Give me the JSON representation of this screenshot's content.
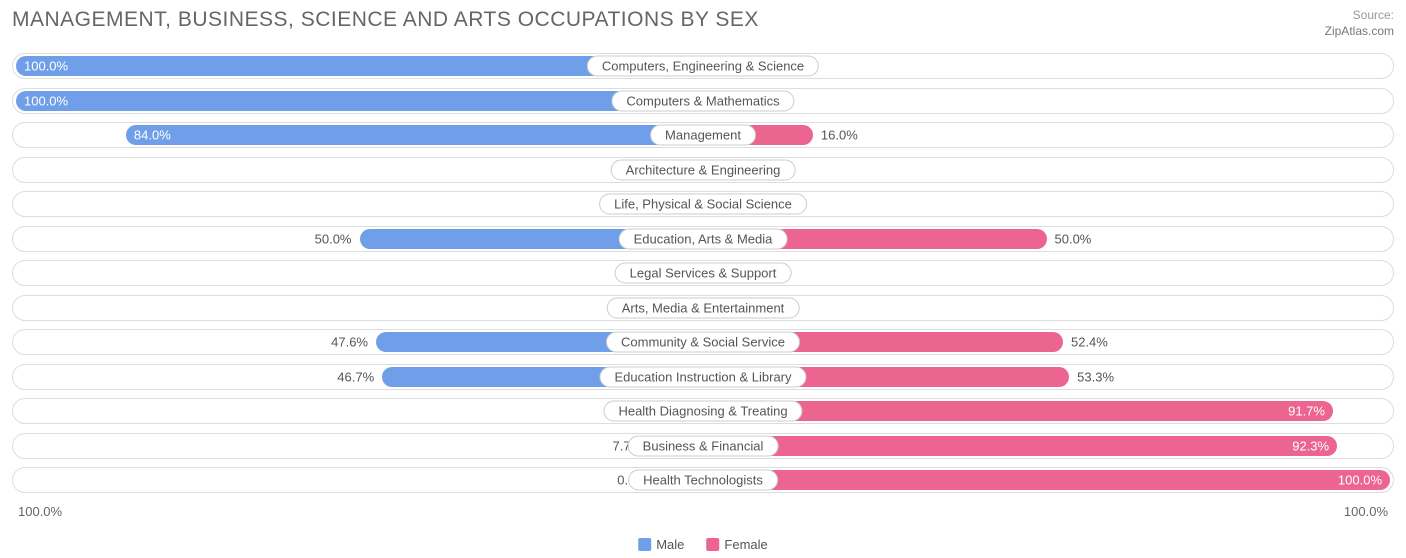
{
  "header": {
    "title": "MANAGEMENT, BUSINESS, SCIENCE AND ARTS OCCUPATIONS BY SEX",
    "source_label": "Source:",
    "source_site": "ZipAtlas.com"
  },
  "chart": {
    "type": "diverging-bar",
    "background_color": "#ffffff",
    "row_border_color": "#dddddd",
    "label_border_color": "#cccccc",
    "text_color": "#555555",
    "male": {
      "fill_color": "#6f9fe8",
      "weak_color": "#a7c2ee",
      "legend_label": "Male"
    },
    "female": {
      "fill_color": "#ec6490",
      "weak_color": "#f3a0bb",
      "legend_label": "Female"
    },
    "axis": {
      "left": "100.0%",
      "right": "100.0%"
    },
    "label_fontsize": 13,
    "title_fontsize": 21,
    "min_bar_pct": 7.0,
    "rows": [
      {
        "category": "Computers, Engineering & Science",
        "male": 100.0,
        "female": 0.0
      },
      {
        "category": "Computers & Mathematics",
        "male": 100.0,
        "female": 0.0
      },
      {
        "category": "Management",
        "male": 84.0,
        "female": 16.0
      },
      {
        "category": "Architecture & Engineering",
        "male": 0.0,
        "female": 0.0
      },
      {
        "category": "Life, Physical & Social Science",
        "male": 0.0,
        "female": 0.0
      },
      {
        "category": "Education, Arts & Media",
        "male": 50.0,
        "female": 50.0
      },
      {
        "category": "Legal Services & Support",
        "male": 0.0,
        "female": 0.0
      },
      {
        "category": "Arts, Media & Entertainment",
        "male": 0.0,
        "female": 0.0
      },
      {
        "category": "Community & Social Service",
        "male": 47.6,
        "female": 52.4
      },
      {
        "category": "Education Instruction & Library",
        "male": 46.7,
        "female": 53.3
      },
      {
        "category": "Health Diagnosing & Treating",
        "male": 8.3,
        "female": 91.7
      },
      {
        "category": "Business & Financial",
        "male": 7.7,
        "female": 92.3
      },
      {
        "category": "Health Technologists",
        "male": 0.0,
        "female": 100.0
      }
    ]
  }
}
